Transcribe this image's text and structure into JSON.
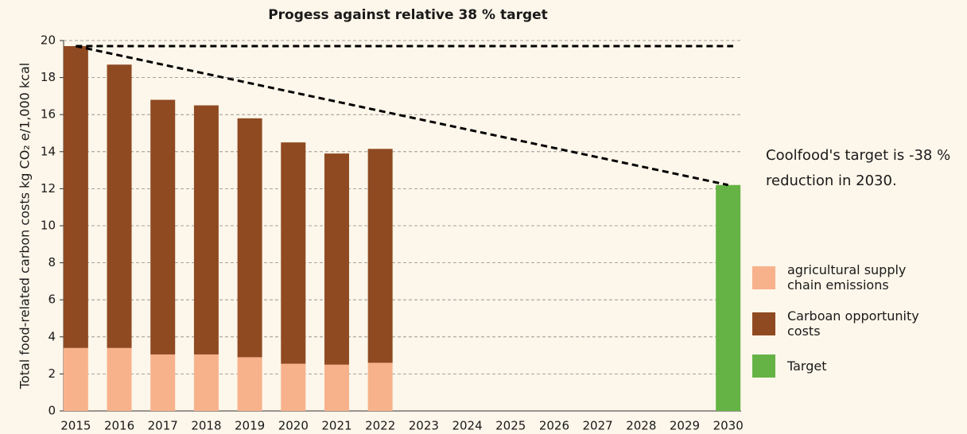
{
  "chart_data": {
    "type": "bar",
    "stacked": true,
    "title": "Progess against relative 38 % target",
    "y_label": "Total food-related carbon costs kg CO₂ e/1,000 kcal",
    "annotation": [
      "Coolfood's target is -38 %",
      "reduction in 2030."
    ],
    "categories": [
      "2015",
      "2016",
      "2017",
      "2018",
      "2019",
      "2020",
      "2021",
      "2022",
      "2023",
      "2024",
      "2025",
      "2026",
      "2027",
      "2028",
      "2029",
      "2030"
    ],
    "series": [
      {
        "name": "agricultural supply chain emissions",
        "color": "#f7b28c",
        "values": [
          3.4,
          3.4,
          3.05,
          3.05,
          2.9,
          2.55,
          2.5,
          2.6,
          null,
          null,
          null,
          null,
          null,
          null,
          null,
          null
        ]
      },
      {
        "name": "Carboan opportunity costs",
        "color": "#8f4a22",
        "values": [
          16.3,
          15.3,
          13.75,
          13.45,
          12.9,
          11.95,
          11.4,
          11.55,
          null,
          null,
          null,
          null,
          null,
          null,
          null,
          null
        ]
      },
      {
        "name": "Target",
        "color": "#65b345",
        "values": [
          null,
          null,
          null,
          null,
          null,
          null,
          null,
          null,
          null,
          null,
          null,
          null,
          null,
          null,
          null,
          12.2
        ]
      }
    ],
    "ylim": [
      0,
      20
    ],
    "yticks": [
      0,
      2,
      4,
      6,
      8,
      10,
      12,
      14,
      16,
      18,
      20
    ],
    "grid": true
  }
}
